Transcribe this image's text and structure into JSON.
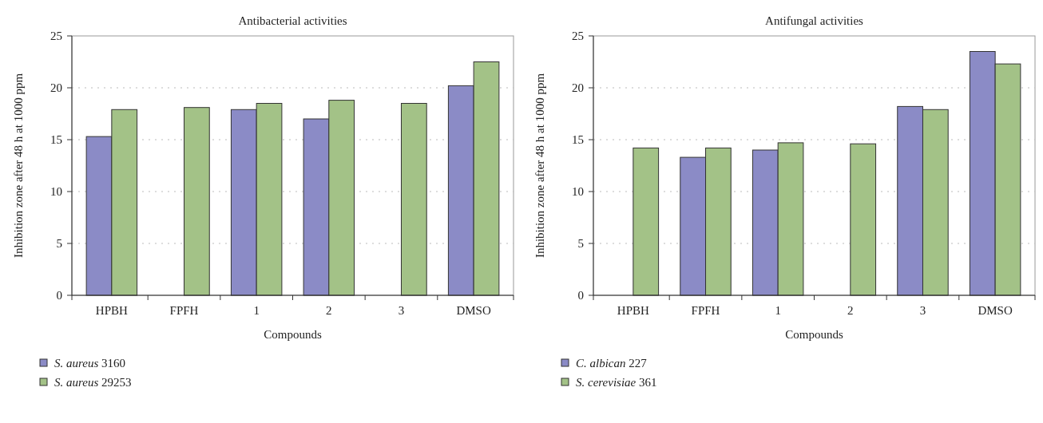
{
  "chart_data": [
    {
      "type": "bar",
      "title": "Antibacterial activities",
      "xlabel": "Compounds",
      "ylabel": "Inhibition zone after 48 h at 1000 ppm",
      "categories": [
        "HPBH",
        "FPFH",
        "1",
        "2",
        "3",
        "DMSO"
      ],
      "series": [
        {
          "name": "S. aureus 3160",
          "color": "#8b8bc6",
          "values": [
            15.3,
            null,
            17.9,
            17.0,
            null,
            20.2
          ]
        },
        {
          "name": "S. aureus 29253",
          "color": "#a3c287",
          "values": [
            17.9,
            18.1,
            18.5,
            18.8,
            18.5,
            22.5
          ]
        }
      ],
      "ylim": [
        0,
        25
      ],
      "yticks": [
        0,
        5,
        10,
        15,
        20,
        25
      ],
      "grid": "y",
      "legend": "bottom left"
    },
    {
      "type": "bar",
      "title": "Antifungal activities",
      "xlabel": "Compounds",
      "ylabel": "Inhibition zone after 48 h at 1000 ppm",
      "categories": [
        "HPBH",
        "FPFH",
        "1",
        "2",
        "3",
        "DMSO"
      ],
      "series": [
        {
          "name": "C. albican 227",
          "color": "#8b8bc6",
          "values": [
            null,
            13.3,
            14.0,
            null,
            18.2,
            23.5
          ]
        },
        {
          "name": "S. cerevisiae 361",
          "color": "#a3c287",
          "values": [
            14.2,
            14.2,
            14.7,
            14.6,
            17.9,
            22.3
          ]
        }
      ],
      "ylim": [
        0,
        25
      ],
      "yticks": [
        0,
        5,
        10,
        15,
        20,
        25
      ],
      "grid": "y",
      "legend": "bottom left"
    }
  ]
}
